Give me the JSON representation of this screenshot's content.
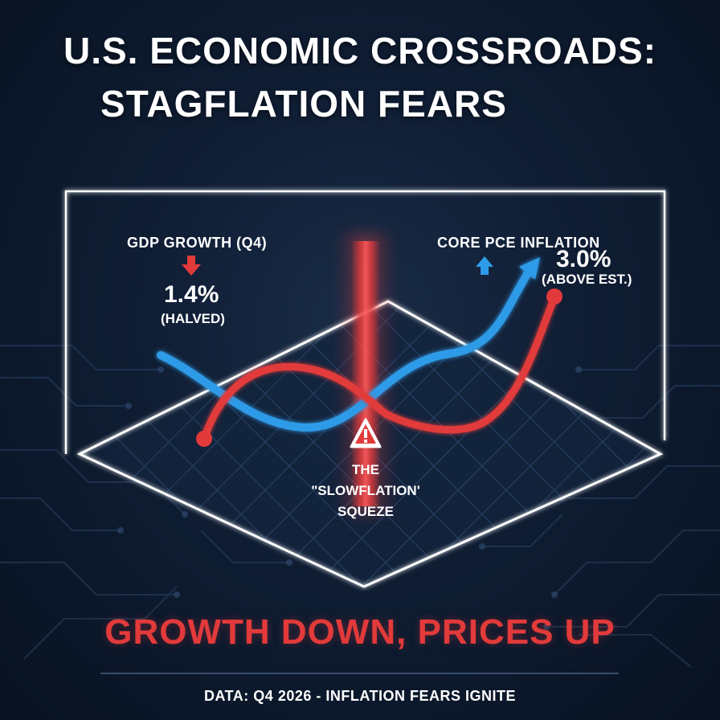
{
  "title": {
    "line1": "U.S. ECONOMIC CROSSROADS:",
    "line2": "STAGFLATION FEARS"
  },
  "gdp": {
    "label": "GDP GROWTH (Q4)",
    "value": "1.4%",
    "note": "(HALVED)",
    "direction": "down",
    "color": "#e23a3a"
  },
  "pce": {
    "label": "CORE PCE INFLATION",
    "value": "3.0%",
    "note": "(ABOVE EST.)",
    "direction": "up",
    "color": "#2e9be8"
  },
  "center": {
    "line1": "THE",
    "line2": "\"SLOWFLATION'",
    "line3": "SQUEZE"
  },
  "headline": "GROWTH DOWN, PRICES UP",
  "footer": "DATA: Q4 2026 - INFLATION FEARS IGNITE",
  "colors": {
    "accent_red": "#e23a3a",
    "accent_blue": "#2e9be8",
    "background": "#0b1526"
  }
}
